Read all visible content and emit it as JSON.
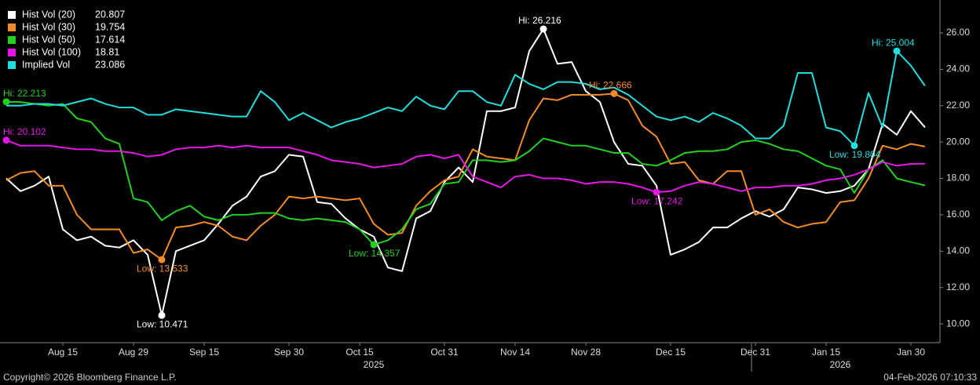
{
  "chart_data": {
    "type": "line",
    "categories": [
      null,
      null,
      null,
      null,
      "Aug 15",
      null,
      null,
      null,
      null,
      "Aug 29",
      null,
      null,
      null,
      null,
      "Sep 15",
      null,
      null,
      null,
      null,
      null,
      "Sep 30",
      null,
      null,
      null,
      null,
      "Oct 15",
      null,
      null,
      null,
      null,
      null,
      "Oct 31",
      null,
      null,
      null,
      null,
      "Nov 14",
      null,
      null,
      null,
      null,
      "Nov 28",
      null,
      null,
      null,
      null,
      null,
      "Dec 15",
      null,
      null,
      null,
      null,
      null,
      "Dec 31",
      null,
      null,
      null,
      null,
      "Jan 15",
      null,
      null,
      null,
      null,
      null,
      "Jan 30",
      null
    ],
    "year_labels": [
      {
        "label": "2025",
        "index": 26
      },
      {
        "label": "2026",
        "index": 59
      }
    ],
    "series": [
      {
        "name": "Hist Vol (20)",
        "last": 20.807,
        "color": "#ffffff",
        "values": [
          18.0,
          17.3,
          17.6,
          18.1,
          15.2,
          14.6,
          14.8,
          14.3,
          14.2,
          14.6,
          13.8,
          10.471,
          14.0,
          14.3,
          14.6,
          15.5,
          16.5,
          17.0,
          18.1,
          18.4,
          19.3,
          19.2,
          16.7,
          16.6,
          15.8,
          15.2,
          14.8,
          13.1,
          12.9,
          15.8,
          16.2,
          17.8,
          18.6,
          17.8,
          21.7,
          21.7,
          21.9,
          25.0,
          26.216,
          24.3,
          24.4,
          22.8,
          22.2,
          20.0,
          18.8,
          18.7,
          17.6,
          13.8,
          14.1,
          14.5,
          15.3,
          15.3,
          15.8,
          16.2,
          15.9,
          16.3,
          17.5,
          17.4,
          17.2,
          17.3,
          17.6,
          18.5,
          21.0,
          20.4,
          21.7,
          20.807
        ]
      },
      {
        "name": "Hist Vol (30)",
        "last": 19.754,
        "color": "#f28c28",
        "values": [
          17.9,
          18.3,
          18.4,
          17.6,
          17.6,
          16.0,
          15.2,
          15.2,
          15.2,
          13.9,
          14.1,
          13.533,
          15.3,
          15.4,
          15.6,
          15.4,
          14.8,
          14.6,
          15.4,
          16.0,
          17.0,
          16.9,
          17.0,
          16.9,
          16.8,
          16.9,
          15.5,
          14.9,
          15.0,
          16.5,
          17.3,
          17.9,
          18.1,
          19.6,
          19.2,
          19.1,
          19.0,
          21.2,
          22.4,
          22.3,
          22.6,
          22.6,
          22.6,
          22.666,
          22.3,
          20.9,
          20.3,
          18.8,
          18.9,
          17.9,
          17.7,
          18.4,
          18.4,
          16.0,
          16.3,
          15.6,
          15.3,
          15.5,
          15.6,
          16.7,
          16.8,
          18.0,
          19.8,
          19.6,
          19.9,
          19.754
        ]
      },
      {
        "name": "Hist Vol (50)",
        "last": 17.614,
        "color": "#22d022",
        "values": [
          22.213,
          22.2,
          22.1,
          22.0,
          22.1,
          21.3,
          21.1,
          20.2,
          19.9,
          16.9,
          16.7,
          15.7,
          16.2,
          16.5,
          15.9,
          15.7,
          16.0,
          16.0,
          16.1,
          16.1,
          15.8,
          15.7,
          15.8,
          15.7,
          15.6,
          15.2,
          14.357,
          14.6,
          15.2,
          16.3,
          16.6,
          17.7,
          17.8,
          19.0,
          19.0,
          18.9,
          19.0,
          19.5,
          20.2,
          20.0,
          19.8,
          19.8,
          19.6,
          19.4,
          19.4,
          18.8,
          18.7,
          19.0,
          19.4,
          19.5,
          19.5,
          19.6,
          20.0,
          20.1,
          19.9,
          19.6,
          19.5,
          19.1,
          18.7,
          18.5,
          17.2,
          18.5,
          19.0,
          18.0,
          17.8,
          17.614
        ]
      },
      {
        "name": "Hist Vol (100)",
        "last": 18.81,
        "color": "#e617e6",
        "values": [
          20.102,
          19.8,
          19.8,
          19.8,
          19.7,
          19.6,
          19.6,
          19.5,
          19.5,
          19.4,
          19.2,
          19.3,
          19.6,
          19.7,
          19.7,
          19.8,
          19.7,
          19.8,
          19.7,
          19.7,
          19.7,
          19.5,
          19.3,
          19.0,
          18.9,
          18.8,
          18.6,
          18.7,
          18.8,
          19.2,
          19.3,
          19.1,
          19.3,
          18.1,
          17.8,
          17.5,
          18.1,
          18.2,
          18.0,
          18.0,
          17.9,
          17.7,
          17.8,
          17.8,
          17.7,
          17.5,
          17.242,
          17.3,
          17.6,
          17.8,
          17.7,
          17.5,
          17.3,
          17.5,
          17.5,
          17.6,
          17.6,
          17.7,
          17.9,
          18.0,
          18.2,
          18.5,
          18.9,
          18.7,
          18.8,
          18.81
        ]
      },
      {
        "name": "Implied Vol",
        "last": 23.086,
        "color": "#22dddd",
        "values": [
          22.0,
          22.0,
          22.1,
          22.1,
          22.0,
          22.2,
          22.4,
          22.1,
          21.9,
          21.9,
          21.5,
          21.5,
          21.8,
          21.7,
          21.6,
          21.5,
          21.4,
          21.4,
          22.8,
          22.2,
          21.2,
          21.6,
          21.2,
          20.8,
          21.1,
          21.3,
          21.6,
          21.9,
          21.7,
          22.5,
          22.0,
          21.8,
          22.8,
          22.8,
          22.2,
          22.0,
          23.7,
          23.2,
          22.9,
          23.3,
          23.3,
          23.2,
          22.9,
          23.0,
          22.6,
          22.0,
          21.4,
          21.2,
          21.4,
          21.1,
          21.6,
          21.3,
          20.9,
          20.2,
          20.2,
          20.9,
          23.8,
          23.8,
          20.8,
          20.6,
          19.804,
          22.7,
          20.8,
          25.004,
          24.2,
          23.086
        ]
      }
    ],
    "annotations": [
      {
        "series": 0,
        "index": 38,
        "label": "Hi: 26.216",
        "kind": "hi"
      },
      {
        "series": 0,
        "index": 11,
        "label": "Low: 10.471",
        "kind": "low"
      },
      {
        "series": 1,
        "index": 43,
        "label": "Hi: 22.666",
        "kind": "hi"
      },
      {
        "series": 1,
        "index": 11,
        "label": "Low: 13.533",
        "kind": "low"
      },
      {
        "series": 2,
        "index": 0,
        "label": "Hi: 22.213",
        "kind": "hi"
      },
      {
        "series": 2,
        "index": 26,
        "label": "Low: 14.357",
        "kind": "low"
      },
      {
        "series": 3,
        "index": 0,
        "label": "Hi: 20.102",
        "kind": "hi"
      },
      {
        "series": 3,
        "index": 46,
        "label": "Low: 17.242",
        "kind": "low"
      },
      {
        "series": 4,
        "index": 63,
        "label": "Hi: 25.004",
        "kind": "hi"
      },
      {
        "series": 4,
        "index": 60,
        "label": "Low: 19.804",
        "kind": "low"
      }
    ],
    "ylim": [
      8.97,
      27.81
    ],
    "yticks": [
      {
        "value": 10,
        "label": "10.00"
      },
      {
        "value": 12,
        "label": "12.00"
      },
      {
        "value": 14,
        "label": "14.00"
      },
      {
        "value": 16,
        "label": "16.00"
      },
      {
        "value": 18,
        "label": "18.00"
      },
      {
        "value": 20,
        "label": "20.00"
      },
      {
        "value": 22,
        "label": "22.00"
      },
      {
        "value": 24,
        "label": "24.00"
      },
      {
        "value": 26,
        "label": "26.00"
      }
    ],
    "footer_left": "Copyright© 2026 Bloomberg Finance L.P.",
    "footer_right": "04-Feb-2026 07:10:33"
  }
}
